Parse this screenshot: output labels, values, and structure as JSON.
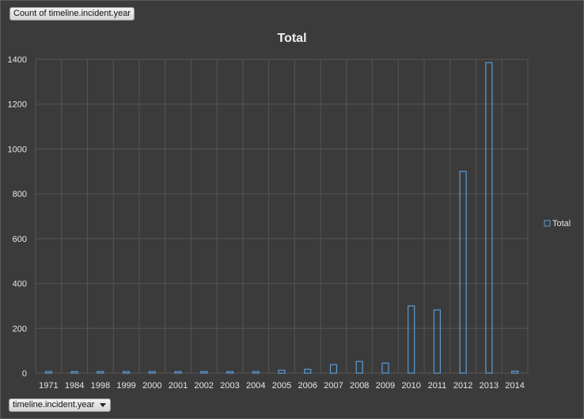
{
  "pivot": {
    "value_field_label": "Count of timeline.incident.year",
    "axis_field_label": "timeline.incident.year"
  },
  "colors": {
    "background": "#3b3b3b",
    "gridline": "#555555",
    "bar_stroke": "#5b9bd5",
    "text": "#e6e6e6"
  },
  "chart_data": {
    "type": "bar",
    "title": "Total",
    "xlabel": "",
    "ylabel": "",
    "ylim": [
      0,
      1400
    ],
    "yticks": [
      0,
      200,
      400,
      600,
      800,
      1000,
      1200,
      1400
    ],
    "grid": true,
    "legend_position": "right",
    "categories": [
      "1971",
      "1984",
      "1998",
      "1999",
      "2000",
      "2001",
      "2002",
      "2003",
      "2004",
      "2005",
      "2006",
      "2007",
      "2008",
      "2009",
      "2010",
      "2011",
      "2012",
      "2013",
      "2014"
    ],
    "series": [
      {
        "name": "Total",
        "values": [
          1,
          1,
          1,
          1,
          1,
          1,
          1,
          3,
          5,
          13,
          17,
          38,
          52,
          45,
          300,
          282,
          900,
          1385,
          9
        ]
      }
    ]
  }
}
